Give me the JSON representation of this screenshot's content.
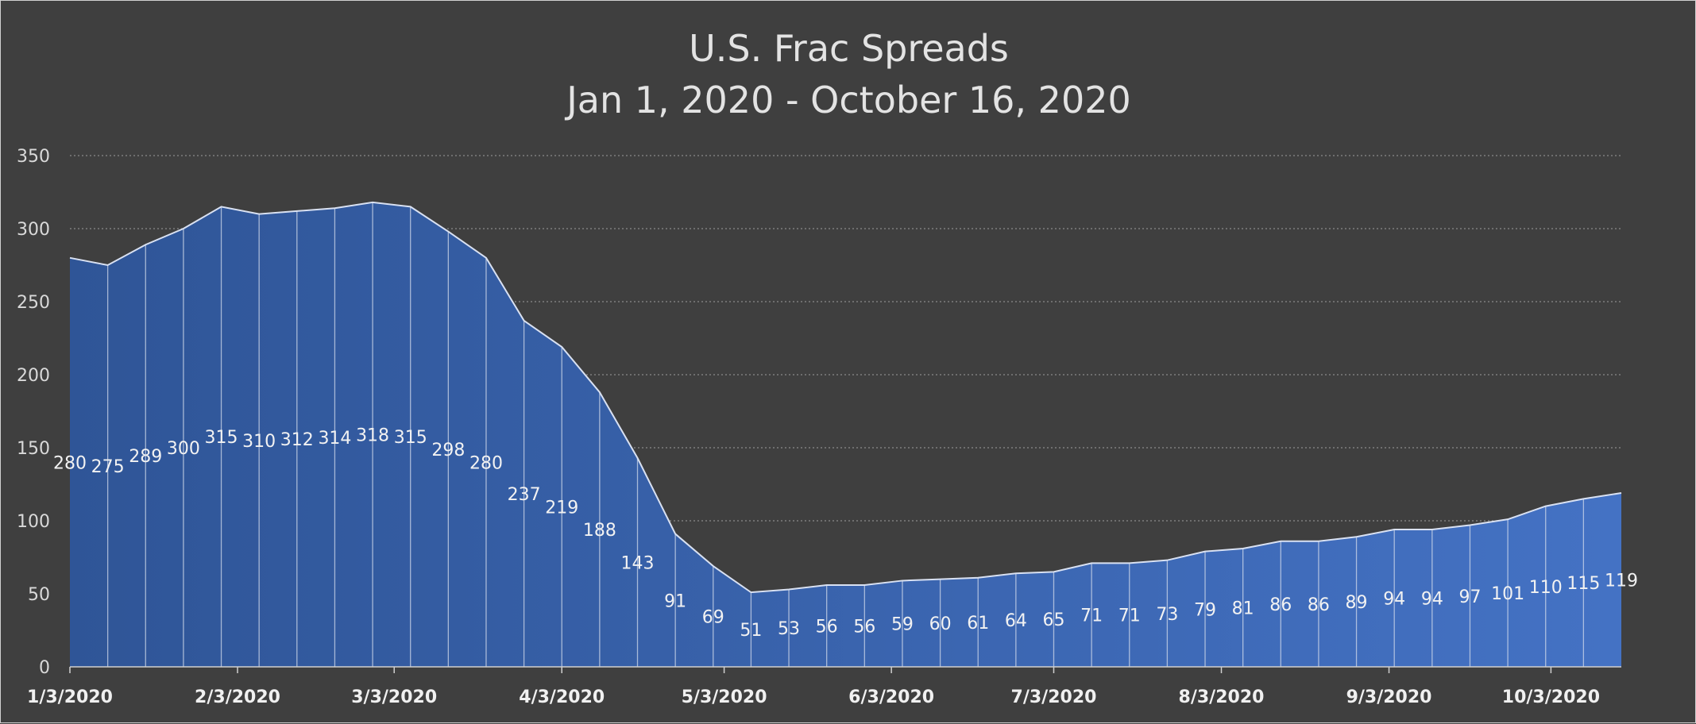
{
  "chart_data": {
    "type": "area",
    "title": "U.S. Frac Spreads",
    "subtitle": "Jan 1, 2020 - October 16, 2020",
    "xlabel": "",
    "ylabel": "",
    "ylim": [
      0,
      350
    ],
    "yticks": [
      0,
      50,
      100,
      150,
      200,
      250,
      300,
      350
    ],
    "x_tick_labels": [
      "1/3/2020",
      "2/3/2020",
      "3/3/2020",
      "4/3/2020",
      "5/3/2020",
      "6/3/2020",
      "7/3/2020",
      "8/3/2020",
      "9/3/2020",
      "10/3/2020"
    ],
    "x": [
      "1/3/2020",
      "1/10/2020",
      "1/17/2020",
      "1/24/2020",
      "1/31/2020",
      "2/7/2020",
      "2/14/2020",
      "2/21/2020",
      "2/28/2020",
      "3/6/2020",
      "3/13/2020",
      "3/20/2020",
      "3/27/2020",
      "4/3/2020",
      "4/10/2020",
      "4/17/2020",
      "4/24/2020",
      "5/1/2020",
      "5/8/2020",
      "5/15/2020",
      "5/22/2020",
      "5/29/2020",
      "6/5/2020",
      "6/12/2020",
      "6/19/2020",
      "6/26/2020",
      "7/3/2020",
      "7/10/2020",
      "7/17/2020",
      "7/24/2020",
      "7/31/2020",
      "8/7/2020",
      "8/14/2020",
      "8/21/2020",
      "8/28/2020",
      "9/4/2020",
      "9/11/2020",
      "9/18/2020",
      "9/25/2020",
      "10/2/2020",
      "10/9/2020",
      "10/16/2020"
    ],
    "series": [
      {
        "values": [
          280,
          275,
          289,
          300,
          315,
          310,
          312,
          314,
          318,
          315,
          298,
          280,
          237,
          219,
          188,
          143,
          91,
          69,
          51,
          53,
          56,
          56,
          59,
          60,
          61,
          64,
          65,
          71,
          71,
          73,
          79,
          81,
          86,
          86,
          89,
          94,
          94,
          97,
          101,
          110,
          115,
          119
        ]
      }
    ],
    "data_labels": true,
    "grid": true,
    "legend": "none",
    "colors": {
      "background": "#3f3f3f",
      "area_dark": "#2f5597",
      "area_light": "#4472c4",
      "line": "#d9e1f2",
      "grid": "#8a8a8a"
    }
  }
}
